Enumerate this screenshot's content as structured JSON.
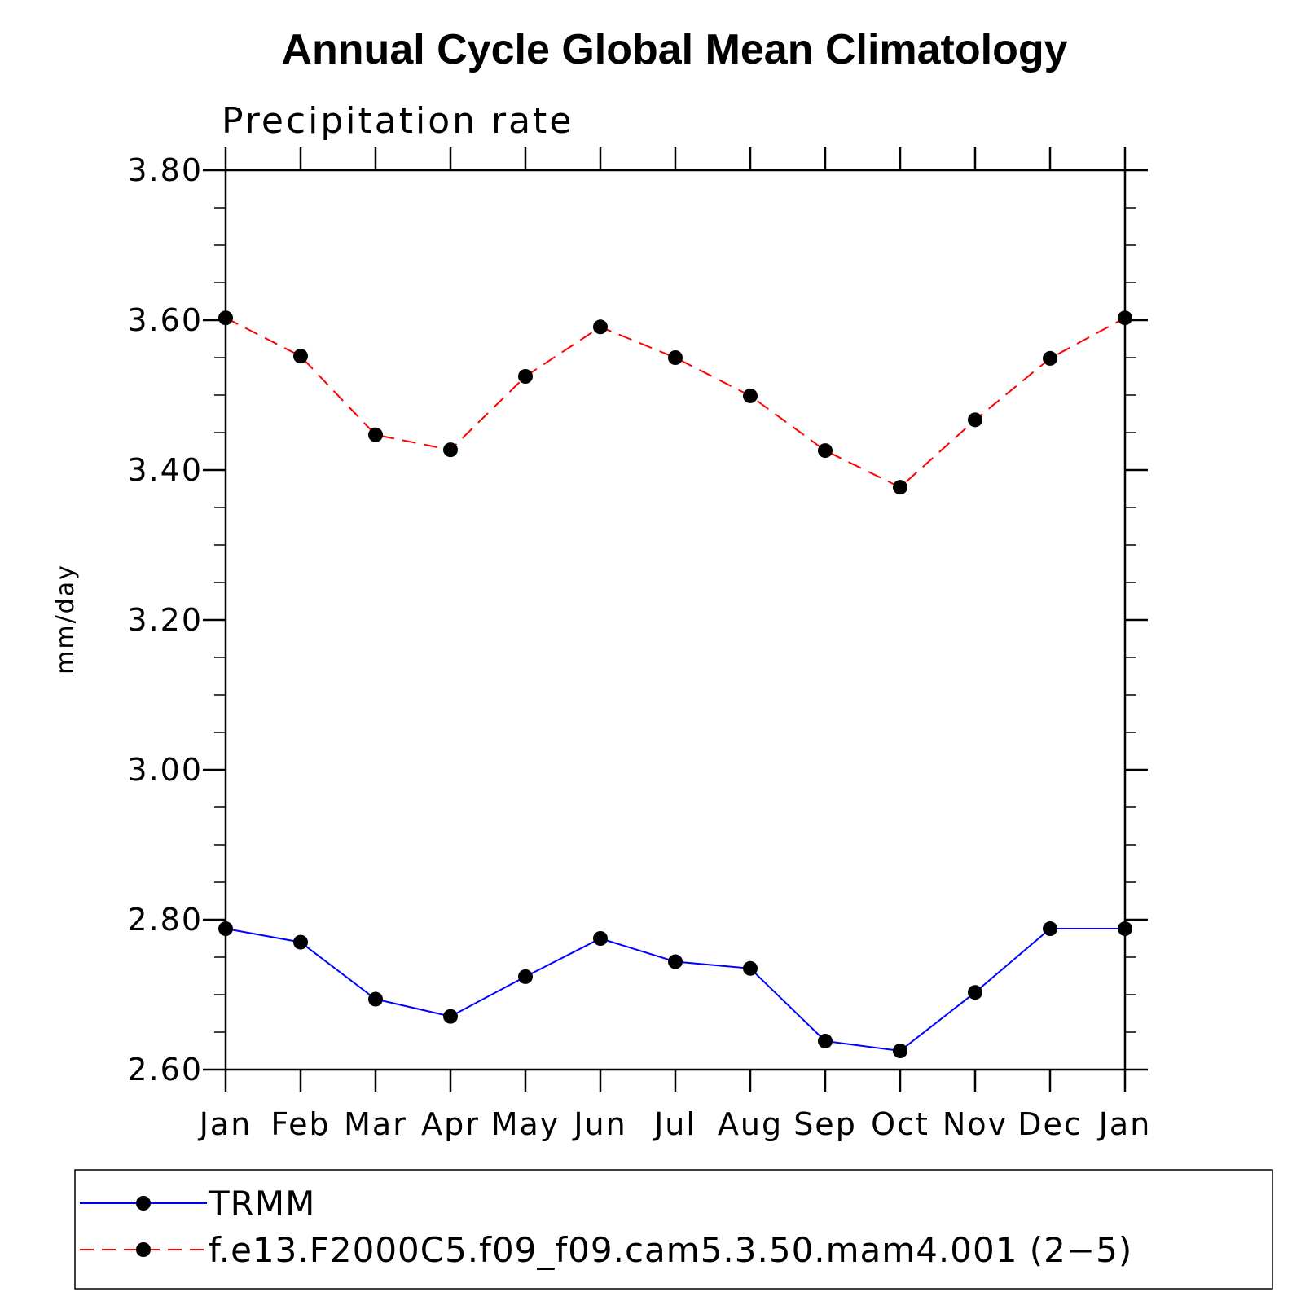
{
  "chart_data": {
    "type": "line",
    "title": "Annual Cycle Global Mean Climatology",
    "subtitle": "Precipitation rate",
    "xlabel": "",
    "ylabel": "mm/day",
    "ylim": [
      2.6,
      3.8
    ],
    "yticks": [
      "2.60",
      "2.80",
      "3.00",
      "3.20",
      "3.40",
      "3.60",
      "3.80"
    ],
    "ytick_values": [
      2.6,
      2.8,
      3.0,
      3.2,
      3.4,
      3.6,
      3.8
    ],
    "y_minor_step": 0.05,
    "categories": [
      "Jan",
      "Feb",
      "Mar",
      "Apr",
      "May",
      "Jun",
      "Jul",
      "Aug",
      "Sep",
      "Oct",
      "Nov",
      "Dec",
      "Jan"
    ],
    "series": [
      {
        "name": "TRMM",
        "color": "#0000ff",
        "dash": "solid",
        "marker": "circle",
        "values": [
          2.788,
          2.77,
          2.694,
          2.671,
          2.724,
          2.775,
          2.744,
          2.735,
          2.638,
          2.625,
          2.703,
          2.788,
          2.788
        ]
      },
      {
        "name": "f.e13.F2000C5.f09_f09.cam5.3.50.mam4.001 (2−5)",
        "color": "#ff0000",
        "dash": "dashed",
        "marker": "circle",
        "values": [
          3.603,
          3.552,
          3.447,
          3.427,
          3.525,
          3.591,
          3.55,
          3.499,
          3.426,
          3.377,
          3.467,
          3.549,
          3.603
        ]
      }
    ],
    "legend_position": "bottom",
    "marker_color": "#000000",
    "axis_color": "#000000"
  }
}
